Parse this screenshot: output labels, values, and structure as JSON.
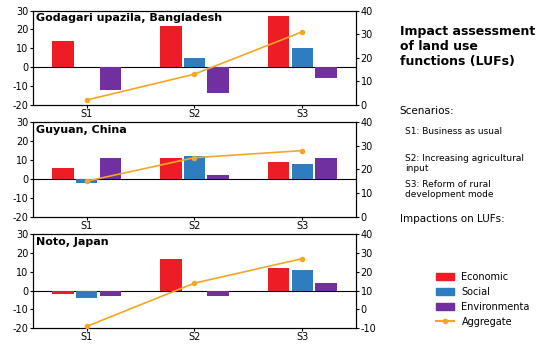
{
  "chart_data": [
    {
      "type": "bar",
      "title": "Godagari upazila, Bangladesh",
      "categories": [
        "S1",
        "S2",
        "S3"
      ],
      "series": [
        {
          "name": "Economic",
          "color": "#ee1c25",
          "values": [
            14,
            22,
            27
          ]
        },
        {
          "name": "Social",
          "color": "#2e7dc0",
          "values": [
            0,
            5,
            10
          ]
        },
        {
          "name": "Environmenta",
          "color": "#7030a0",
          "values": [
            -12,
            -14,
            -6
          ]
        },
        {
          "name": "Aggregate",
          "color": "#f5a623",
          "type": "line",
          "marker": "o",
          "axis": "y2",
          "values": [
            2,
            13,
            31
          ]
        }
      ],
      "ylim": [
        -20,
        30
      ],
      "yticks": [
        -20,
        -10,
        0,
        10,
        20,
        30
      ],
      "y2lim": [
        0,
        40
      ],
      "y2ticks": [
        0,
        10,
        20,
        30,
        40
      ],
      "legend": "lower right"
    },
    {
      "type": "bar",
      "title": "Guyuan, China",
      "categories": [
        "S1",
        "S2",
        "S3"
      ],
      "series": [
        {
          "name": "Economic",
          "color": "#ee1c25",
          "values": [
            6,
            11,
            9
          ]
        },
        {
          "name": "Social",
          "color": "#2e7dc0",
          "values": [
            -2,
            12,
            8
          ]
        },
        {
          "name": "Environmenta",
          "color": "#7030a0",
          "values": [
            11,
            2,
            11
          ]
        },
        {
          "name": "Aggregate",
          "color": "#f5a623",
          "type": "line",
          "marker": "o",
          "axis": "y2",
          "values": [
            15,
            25,
            28
          ]
        }
      ],
      "ylim": [
        -20,
        30
      ],
      "yticks": [
        -20,
        -10,
        0,
        10,
        20,
        30
      ],
      "y2lim": [
        0,
        40
      ],
      "y2ticks": [
        0,
        10,
        20,
        30,
        40
      ],
      "legend": "lower right"
    },
    {
      "type": "bar",
      "title": "Noto, Japan",
      "categories": [
        "S1",
        "S2",
        "S3"
      ],
      "series": [
        {
          "name": "Economic",
          "color": "#ee1c25",
          "values": [
            -2,
            17,
            12
          ]
        },
        {
          "name": "Social",
          "color": "#2e7dc0",
          "values": [
            -4,
            0,
            11
          ]
        },
        {
          "name": "Environmenta",
          "color": "#7030a0",
          "values": [
            -3,
            -3,
            4
          ]
        },
        {
          "name": "Aggregate",
          "color": "#f5a623",
          "type": "line",
          "marker": "o",
          "axis": "y2",
          "values": [
            -9,
            14,
            27
          ]
        }
      ],
      "ylim": [
        -20,
        30
      ],
      "yticks": [
        -20,
        -10,
        0,
        10,
        20,
        30
      ],
      "y2lim": [
        -10,
        40
      ],
      "y2ticks": [
        -10,
        0,
        10,
        20,
        30,
        40
      ],
      "legend": "lower right"
    }
  ],
  "legend_panel": {
    "title": "Impact assessment of land use functions (LUFs)",
    "scenarios_heading": "Scenarios:",
    "scenarios": [
      "S1: Business as usual",
      "S2: Increasing agricultural input",
      "S3: Reform of rural development mode"
    ],
    "impacts_heading": "Impactions on LUFs:"
  }
}
